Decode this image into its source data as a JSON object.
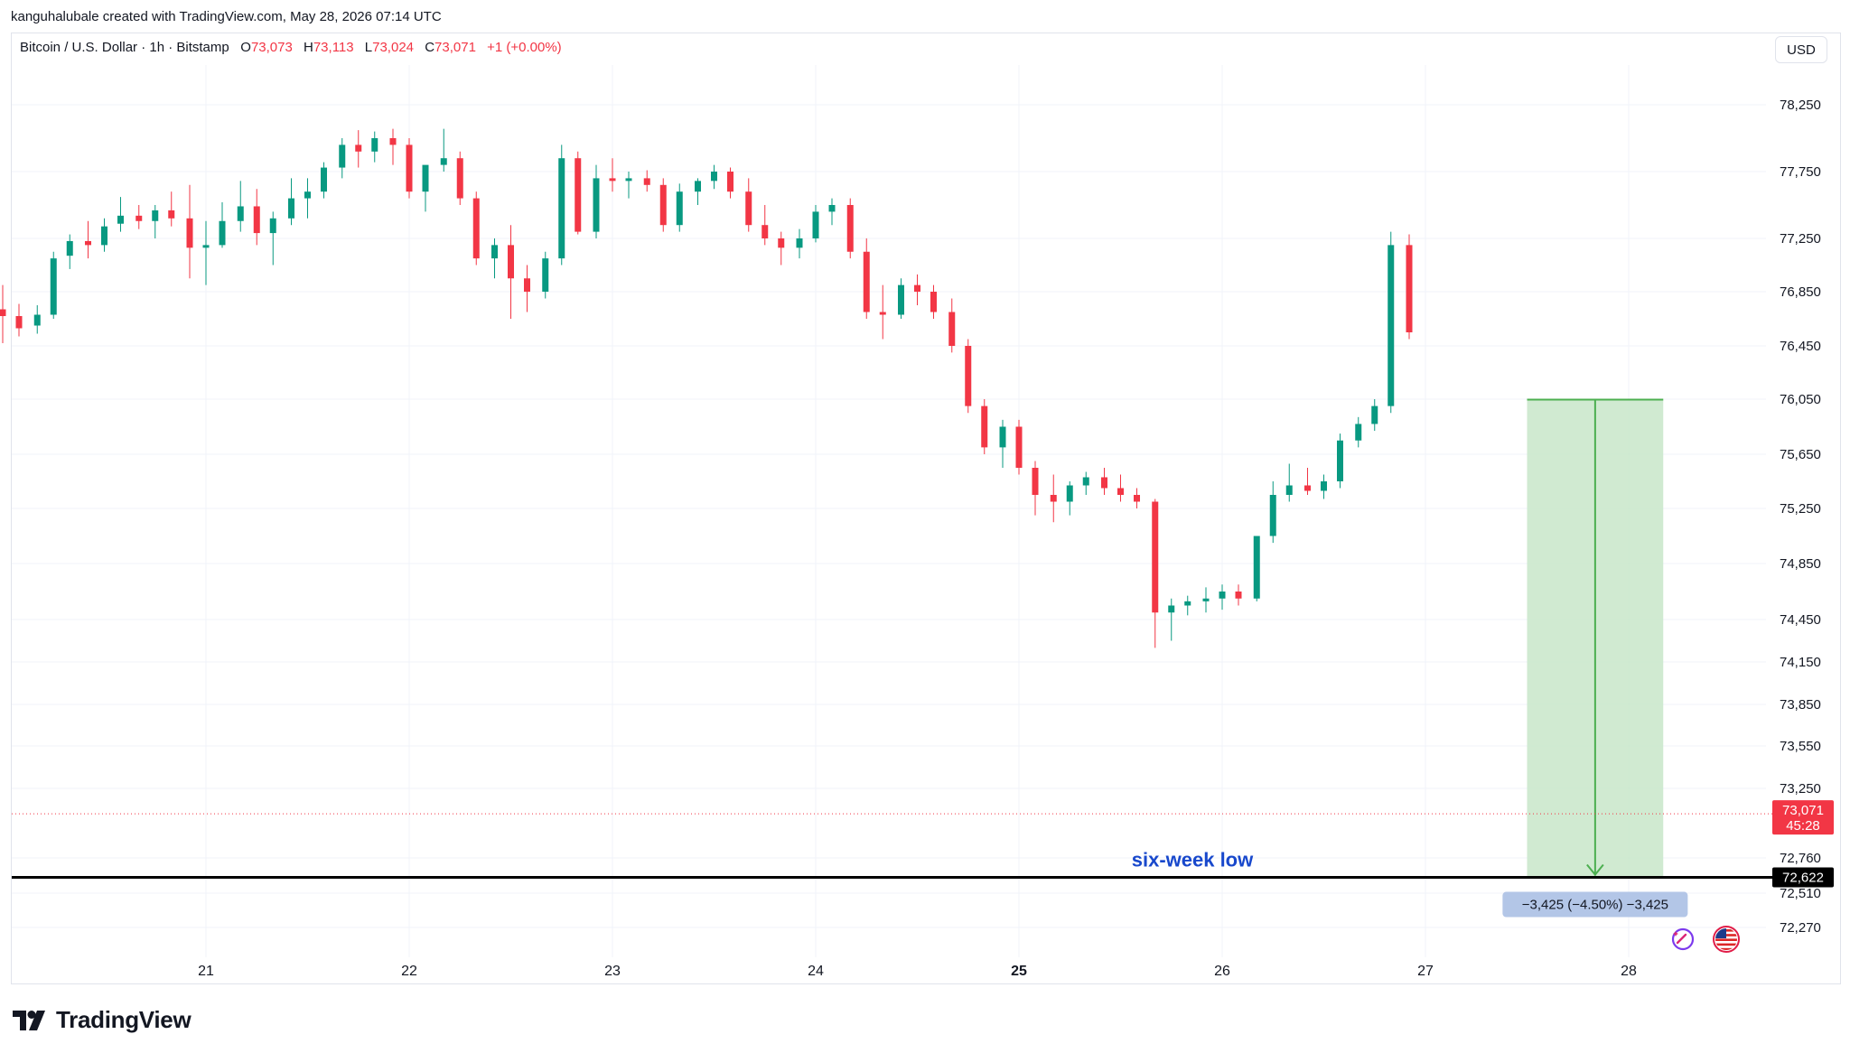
{
  "credit": "kanguhalubale created with TradingView.com, May 28, 2026 07:14 UTC",
  "legend": {
    "symbol": "Bitcoin / U.S. Dollar · 1h · Bitstamp",
    "open_label": "O",
    "open": "73,073",
    "high_label": "H",
    "high": "73,113",
    "low_label": "L",
    "low": "73,024",
    "close_label": "C",
    "close": "73,071",
    "change": "+1 (+0.00%)"
  },
  "currency": "USD",
  "logo_text": "TradingView",
  "colors": {
    "up": "#089981",
    "down": "#f23645",
    "range_fill": "#c8e6c9",
    "range_line": "#4caf50",
    "annotation": "#1848cc"
  },
  "chart_data": {
    "type": "candlestick",
    "timeframe": "1h",
    "x_tick_labels": [
      "21",
      "22",
      "23",
      "24",
      "25",
      "26",
      "27",
      "28"
    ],
    "x_tick_values": [
      21,
      22,
      23,
      24,
      25,
      26,
      27,
      28
    ],
    "y_tick_labels": [
      "78,250",
      "77,750",
      "77,250",
      "76,850",
      "76,450",
      "76,050",
      "75,650",
      "75,250",
      "74,850",
      "74,450",
      "74,150",
      "73,850",
      "73,550",
      "73,250",
      "72,760",
      "72,510",
      "72,270"
    ],
    "y_tick_values": [
      78250,
      77750,
      77250,
      76850,
      76450,
      76050,
      75650,
      75250,
      74850,
      74450,
      74150,
      73850,
      73550,
      73250,
      72760,
      72510,
      72270
    ],
    "last_price": {
      "label": "73,071",
      "countdown": "45:28",
      "value": 73071
    },
    "support": {
      "label": "72,622",
      "value": 72622,
      "annotation": "six-week low"
    },
    "price_range": {
      "label": "−3,425 (−4.50%) −3,425",
      "from": 76047,
      "to": 72622,
      "start_x": 27.5,
      "end_x": 28.17
    },
    "candles": [
      {
        "t": 20.0,
        "o": 76720,
        "h": 76900,
        "l": 76470,
        "c": 76670
      },
      {
        "t": 20.08,
        "o": 76670,
        "h": 76760,
        "l": 76520,
        "c": 76580
      },
      {
        "t": 20.17,
        "o": 76600,
        "h": 76750,
        "l": 76540,
        "c": 76680
      },
      {
        "t": 20.25,
        "o": 76680,
        "h": 77150,
        "l": 76650,
        "c": 77100
      },
      {
        "t": 20.33,
        "o": 77120,
        "h": 77280,
        "l": 77020,
        "c": 77230
      },
      {
        "t": 20.42,
        "o": 77230,
        "h": 77380,
        "l": 77100,
        "c": 77200
      },
      {
        "t": 20.5,
        "o": 77200,
        "h": 77400,
        "l": 77150,
        "c": 77340
      },
      {
        "t": 20.58,
        "o": 77360,
        "h": 77560,
        "l": 77300,
        "c": 77420
      },
      {
        "t": 20.67,
        "o": 77420,
        "h": 77500,
        "l": 77320,
        "c": 77380
      },
      {
        "t": 20.75,
        "o": 77380,
        "h": 77500,
        "l": 77250,
        "c": 77460
      },
      {
        "t": 20.83,
        "o": 77460,
        "h": 77600,
        "l": 77340,
        "c": 77400
      },
      {
        "t": 20.92,
        "o": 77400,
        "h": 77650,
        "l": 76950,
        "c": 77180
      },
      {
        "t": 21.0,
        "o": 77180,
        "h": 77380,
        "l": 76900,
        "c": 77200
      },
      {
        "t": 21.08,
        "o": 77200,
        "h": 77520,
        "l": 77180,
        "c": 77380
      },
      {
        "t": 21.17,
        "o": 77380,
        "h": 77680,
        "l": 77300,
        "c": 77490
      },
      {
        "t": 21.25,
        "o": 77490,
        "h": 77620,
        "l": 77200,
        "c": 77290
      },
      {
        "t": 21.33,
        "o": 77290,
        "h": 77450,
        "l": 77050,
        "c": 77400
      },
      {
        "t": 21.42,
        "o": 77400,
        "h": 77700,
        "l": 77350,
        "c": 77550
      },
      {
        "t": 21.5,
        "o": 77550,
        "h": 77700,
        "l": 77400,
        "c": 77600
      },
      {
        "t": 21.58,
        "o": 77600,
        "h": 77820,
        "l": 77550,
        "c": 77780
      },
      {
        "t": 21.67,
        "o": 77780,
        "h": 78000,
        "l": 77700,
        "c": 77950
      },
      {
        "t": 21.75,
        "o": 77950,
        "h": 78060,
        "l": 77780,
        "c": 77900
      },
      {
        "t": 21.83,
        "o": 77900,
        "h": 78050,
        "l": 77820,
        "c": 78000
      },
      {
        "t": 21.92,
        "o": 78000,
        "h": 78070,
        "l": 77800,
        "c": 77950
      },
      {
        "t": 22.0,
        "o": 77950,
        "h": 78000,
        "l": 77550,
        "c": 77600
      },
      {
        "t": 22.08,
        "o": 77600,
        "h": 77780,
        "l": 77450,
        "c": 77800
      },
      {
        "t": 22.17,
        "o": 77800,
        "h": 78070,
        "l": 77750,
        "c": 77850
      },
      {
        "t": 22.25,
        "o": 77850,
        "h": 77900,
        "l": 77500,
        "c": 77550
      },
      {
        "t": 22.33,
        "o": 77550,
        "h": 77600,
        "l": 77050,
        "c": 77100
      },
      {
        "t": 22.42,
        "o": 77100,
        "h": 77250,
        "l": 76950,
        "c": 77200
      },
      {
        "t": 22.5,
        "o": 77200,
        "h": 77350,
        "l": 76650,
        "c": 76950
      },
      {
        "t": 22.58,
        "o": 76950,
        "h": 77050,
        "l": 76700,
        "c": 76850
      },
      {
        "t": 22.67,
        "o": 76850,
        "h": 77150,
        "l": 76800,
        "c": 77100
      },
      {
        "t": 22.75,
        "o": 77100,
        "h": 77950,
        "l": 77050,
        "c": 77850
      },
      {
        "t": 22.83,
        "o": 77850,
        "h": 77900,
        "l": 77280,
        "c": 77300
      },
      {
        "t": 22.92,
        "o": 77300,
        "h": 77800,
        "l": 77250,
        "c": 77700
      },
      {
        "t": 23.0,
        "o": 77700,
        "h": 77850,
        "l": 77600,
        "c": 77680
      },
      {
        "t": 23.08,
        "o": 77680,
        "h": 77750,
        "l": 77550,
        "c": 77700
      },
      {
        "t": 23.17,
        "o": 77700,
        "h": 77760,
        "l": 77600,
        "c": 77650
      },
      {
        "t": 23.25,
        "o": 77650,
        "h": 77700,
        "l": 77300,
        "c": 77350
      },
      {
        "t": 23.33,
        "o": 77350,
        "h": 77660,
        "l": 77300,
        "c": 77600
      },
      {
        "t": 23.42,
        "o": 77600,
        "h": 77700,
        "l": 77500,
        "c": 77680
      },
      {
        "t": 23.5,
        "o": 77680,
        "h": 77800,
        "l": 77620,
        "c": 77750
      },
      {
        "t": 23.58,
        "o": 77750,
        "h": 77780,
        "l": 77550,
        "c": 77600
      },
      {
        "t": 23.67,
        "o": 77600,
        "h": 77700,
        "l": 77300,
        "c": 77350
      },
      {
        "t": 23.75,
        "o": 77350,
        "h": 77500,
        "l": 77200,
        "c": 77250
      },
      {
        "t": 23.83,
        "o": 77250,
        "h": 77300,
        "l": 77050,
        "c": 77180
      },
      {
        "t": 23.92,
        "o": 77180,
        "h": 77320,
        "l": 77100,
        "c": 77250
      },
      {
        "t": 24.0,
        "o": 77250,
        "h": 77500,
        "l": 77220,
        "c": 77450
      },
      {
        "t": 24.08,
        "o": 77450,
        "h": 77550,
        "l": 77350,
        "c": 77500
      },
      {
        "t": 24.17,
        "o": 77500,
        "h": 77550,
        "l": 77100,
        "c": 77150
      },
      {
        "t": 24.25,
        "o": 77150,
        "h": 77250,
        "l": 76650,
        "c": 76700
      },
      {
        "t": 24.33,
        "o": 76700,
        "h": 76900,
        "l": 76500,
        "c": 76680
      },
      {
        "t": 24.42,
        "o": 76680,
        "h": 76950,
        "l": 76650,
        "c": 76900
      },
      {
        "t": 24.5,
        "o": 76900,
        "h": 76980,
        "l": 76750,
        "c": 76850
      },
      {
        "t": 24.58,
        "o": 76850,
        "h": 76900,
        "l": 76650,
        "c": 76700
      },
      {
        "t": 24.67,
        "o": 76700,
        "h": 76800,
        "l": 76400,
        "c": 76450
      },
      {
        "t": 24.75,
        "o": 76450,
        "h": 76500,
        "l": 75950,
        "c": 76000
      },
      {
        "t": 24.83,
        "o": 76000,
        "h": 76050,
        "l": 75650,
        "c": 75700
      },
      {
        "t": 24.92,
        "o": 75700,
        "h": 75900,
        "l": 75550,
        "c": 75850
      },
      {
        "t": 25.0,
        "o": 75850,
        "h": 75900,
        "l": 75500,
        "c": 75550
      },
      {
        "t": 25.08,
        "o": 75550,
        "h": 75600,
        "l": 75200,
        "c": 75350
      },
      {
        "t": 25.17,
        "o": 75350,
        "h": 75500,
        "l": 75150,
        "c": 75300
      },
      {
        "t": 25.25,
        "o": 75300,
        "h": 75450,
        "l": 75200,
        "c": 75420
      },
      {
        "t": 25.33,
        "o": 75420,
        "h": 75520,
        "l": 75350,
        "c": 75480
      },
      {
        "t": 25.42,
        "o": 75480,
        "h": 75550,
        "l": 75350,
        "c": 75400
      },
      {
        "t": 25.5,
        "o": 75400,
        "h": 75500,
        "l": 75300,
        "c": 75350
      },
      {
        "t": 25.58,
        "o": 75350,
        "h": 75400,
        "l": 75250,
        "c": 75300
      },
      {
        "t": 25.67,
        "o": 75300,
        "h": 75320,
        "l": 74250,
        "c": 74500
      },
      {
        "t": 25.75,
        "o": 74500,
        "h": 74600,
        "l": 74300,
        "c": 74550
      },
      {
        "t": 25.83,
        "o": 74550,
        "h": 74620,
        "l": 74480,
        "c": 74580
      },
      {
        "t": 25.92,
        "o": 74580,
        "h": 74680,
        "l": 74500,
        "c": 74600
      },
      {
        "t": 26.0,
        "o": 74600,
        "h": 74700,
        "l": 74520,
        "c": 74650
      },
      {
        "t": 26.08,
        "o": 74650,
        "h": 74700,
        "l": 74550,
        "c": 74600
      },
      {
        "t": 26.17,
        "o": 74600,
        "h": 75050,
        "l": 74580,
        "c": 75050
      },
      {
        "t": 26.25,
        "o": 75050,
        "h": 75450,
        "l": 75000,
        "c": 75350
      },
      {
        "t": 26.33,
        "o": 75350,
        "h": 75580,
        "l": 75300,
        "c": 75420
      },
      {
        "t": 26.42,
        "o": 75420,
        "h": 75550,
        "l": 75350,
        "c": 75380
      },
      {
        "t": 26.5,
        "o": 75380,
        "h": 75500,
        "l": 75320,
        "c": 75450
      },
      {
        "t": 26.58,
        "o": 75450,
        "h": 75800,
        "l": 75400,
        "c": 75750
      },
      {
        "t": 26.67,
        "o": 75750,
        "h": 75920,
        "l": 75700,
        "c": 75870
      },
      {
        "t": 26.75,
        "o": 75870,
        "h": 76050,
        "l": 75820,
        "c": 76000
      },
      {
        "t": 26.83,
        "o": 76000,
        "h": 77300,
        "l": 75950,
        "c": 77200
      },
      {
        "t": 26.92,
        "o": 77200,
        "h": 77280,
        "l": 76500,
        "c": 76550
      }
    ]
  }
}
